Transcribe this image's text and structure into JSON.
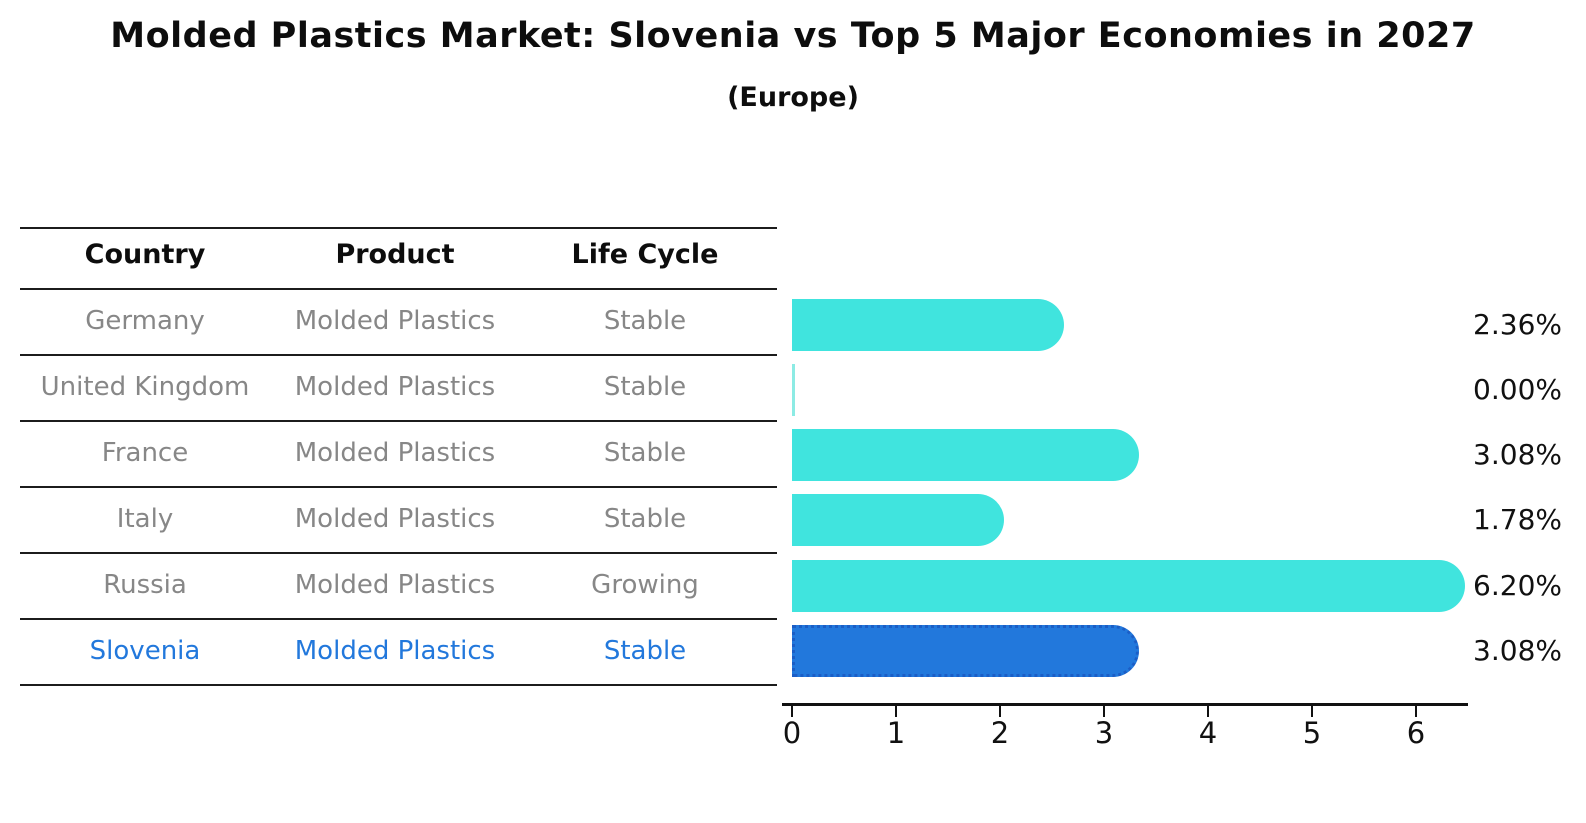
{
  "title": "Molded Plastics Market: Slovenia vs Top 5 Major Economies in 2027",
  "subtitle": "(Europe)",
  "table": {
    "headers": [
      "Country",
      "Product",
      "Life Cycle"
    ],
    "rows": [
      {
        "country": "Germany",
        "product": "Molded Plastics",
        "life_cycle": "Stable",
        "highlighted": false
      },
      {
        "country": "United Kingdom",
        "product": "Molded Plastics",
        "life_cycle": "Stable",
        "highlighted": false
      },
      {
        "country": "France",
        "product": "Molded Plastics",
        "life_cycle": "Stable",
        "highlighted": false
      },
      {
        "country": "Italy",
        "product": "Molded Plastics",
        "life_cycle": "Stable",
        "highlighted": false
      },
      {
        "country": "Russia",
        "product": "Molded Plastics",
        "life_cycle": "Growing",
        "highlighted": false
      },
      {
        "country": "Slovenia",
        "product": "Molded Plastics",
        "life_cycle": "Stable",
        "highlighted": true
      }
    ]
  },
  "chart_data": {
    "type": "bar",
    "orientation": "horizontal",
    "categories": [
      "Germany",
      "United Kingdom",
      "France",
      "Italy",
      "Russia",
      "Slovenia"
    ],
    "values": [
      2.36,
      0.0,
      3.08,
      1.78,
      6.2,
      3.08
    ],
    "value_labels": [
      "2.36%",
      "0.00%",
      "3.08%",
      "1.78%",
      "6.20%",
      "3.08%"
    ],
    "x_ticks": [
      "0",
      "1",
      "2",
      "3",
      "4",
      "5",
      "6"
    ],
    "xlim": [
      0,
      6.5
    ],
    "grid": false,
    "legend": false,
    "title": "Molded Plastics Market: Slovenia vs Top 5 Major Economies in 2027 (Europe)",
    "xlabel": "",
    "ylabel": "",
    "bar_color": "#40e4de",
    "zero_bar_color": "#8cebe4",
    "highlight_bar_color": "#2278dc",
    "highlight_border_color": "#1b5ec6",
    "highlight_index": 5
  },
  "colors": {
    "title_text": "#0d0d0d",
    "table_header_text": "#0d0d0d",
    "table_body_text": "#878787",
    "highlight_text": "#2278dc",
    "value_label_text": "#111111",
    "table_line": "#1c1c1c",
    "axis": "#111111",
    "background": "#ffffff"
  }
}
